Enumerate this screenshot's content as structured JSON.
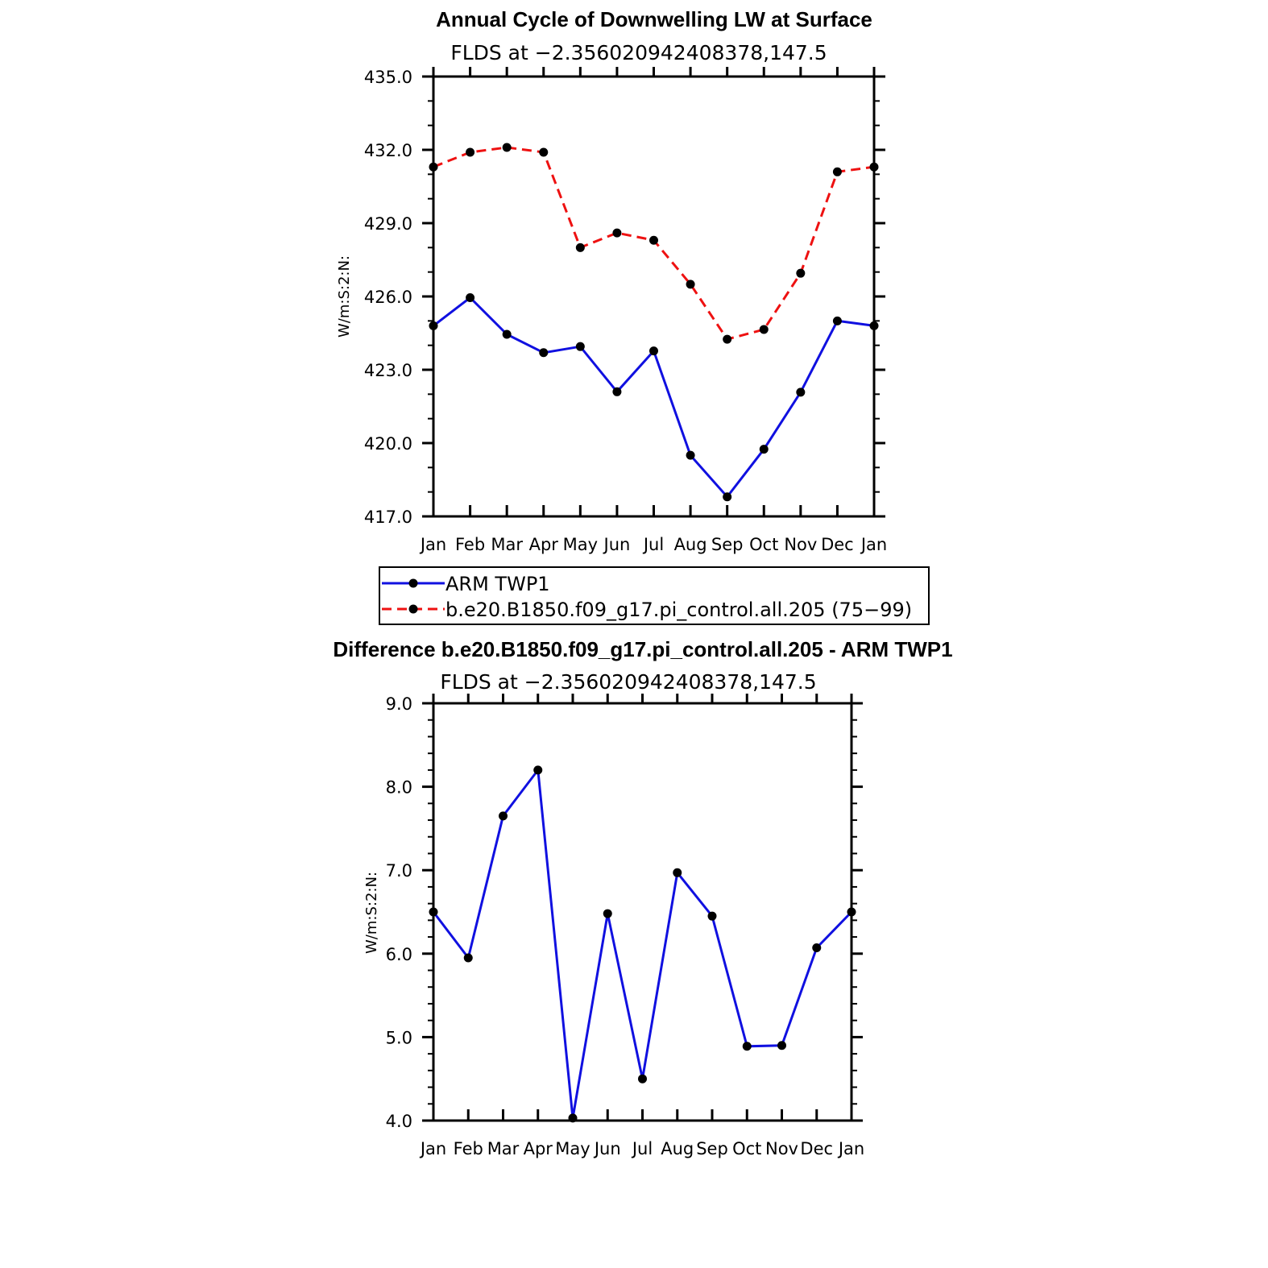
{
  "chart_data": [
    {
      "type": "line",
      "title": "Annual Cycle of Downwelling LW at Surface",
      "subtitle": "FLDS at −2.356020942408378,147.5",
      "xlabel": "",
      "ylabel": "W/m:S:2:N:",
      "categories": [
        "Jan",
        "Feb",
        "Mar",
        "Apr",
        "May",
        "Jun",
        "Jul",
        "Aug",
        "Sep",
        "Oct",
        "Nov",
        "Dec",
        "Jan"
      ],
      "yticks": [
        "417.0",
        "420.0",
        "423.0",
        "426.0",
        "429.0",
        "432.0",
        "435.0"
      ],
      "ylim": [
        417,
        435
      ],
      "series": [
        {
          "name": "ARM TWP1",
          "color": "#1010e0",
          "dash": "solid",
          "values": [
            424.8,
            425.95,
            424.45,
            423.7,
            423.95,
            422.1,
            423.77,
            419.5,
            417.8,
            419.75,
            422.08,
            425.0,
            424.8
          ]
        },
        {
          "name": "b.e20.B1850.f09_g17.pi_control.all.205 (75−99)",
          "color": "#ee1111",
          "dash": "dashed",
          "values": [
            431.3,
            431.9,
            432.1,
            431.9,
            428.0,
            428.6,
            428.3,
            426.5,
            424.25,
            424.65,
            426.95,
            431.1,
            431.3
          ]
        }
      ],
      "legend": "below"
    },
    {
      "type": "line",
      "title": "Difference b.e20.B1850.f09_g17.pi_control.all.205 - ARM TWP1",
      "subtitle": "FLDS at −2.356020942408378,147.5",
      "xlabel": "",
      "ylabel": "W/m:S:2:N:",
      "categories": [
        "Jan",
        "Feb",
        "Mar",
        "Apr",
        "May",
        "Jun",
        "Jul",
        "Aug",
        "Sep",
        "Oct",
        "Nov",
        "Dec",
        "Jan"
      ],
      "yticks": [
        "4.0",
        "5.0",
        "6.0",
        "7.0",
        "8.0",
        "9.0"
      ],
      "ylim": [
        4,
        9
      ],
      "series": [
        {
          "color": "#1010e0",
          "dash": "solid",
          "values": [
            6.5,
            5.95,
            7.65,
            8.2,
            4.03,
            6.48,
            4.5,
            6.97,
            6.45,
            4.89,
            4.9,
            6.07,
            6.5
          ]
        }
      ]
    }
  ]
}
